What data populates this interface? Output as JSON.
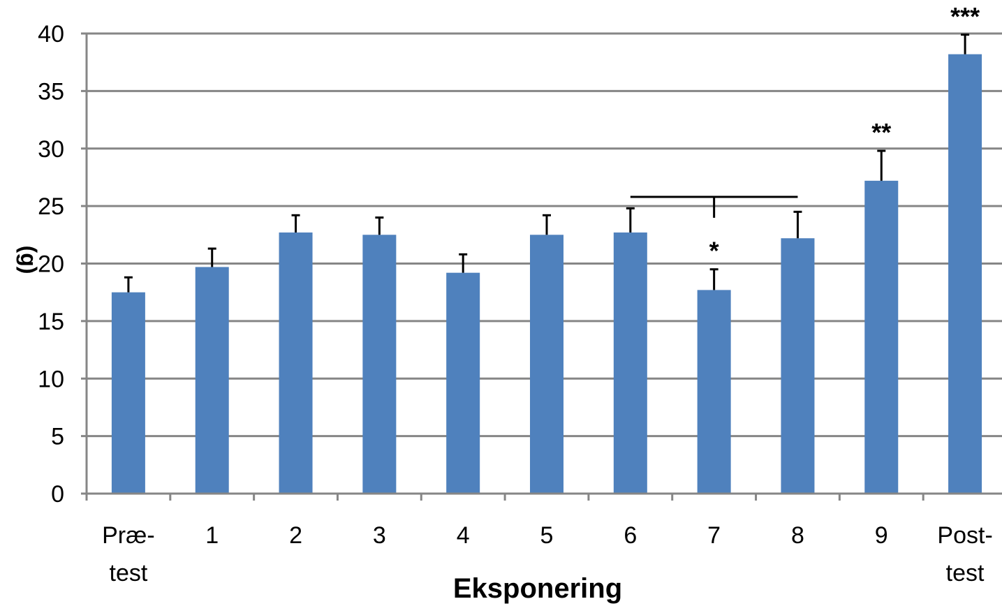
{
  "chart_data": {
    "type": "bar",
    "categories": [
      [
        "Præ-",
        "test"
      ],
      [
        "1"
      ],
      [
        "2"
      ],
      [
        "3"
      ],
      [
        "4"
      ],
      [
        "5"
      ],
      [
        "6"
      ],
      [
        "7"
      ],
      [
        "8"
      ],
      [
        "9"
      ],
      [
        "Post-",
        "test"
      ]
    ],
    "values": [
      17.5,
      19.7,
      22.7,
      22.5,
      19.2,
      22.5,
      22.7,
      17.7,
      22.2,
      27.2,
      38.2
    ],
    "errors": [
      1.3,
      1.6,
      1.5,
      1.5,
      1.6,
      1.7,
      2.1,
      1.8,
      2.3,
      2.6,
      1.7
    ],
    "significance": [
      "",
      "",
      "",
      "",
      "",
      "",
      "",
      "*",
      "",
      "**",
      "***"
    ],
    "bracket": {
      "from": 6,
      "to": 8
    },
    "title": "",
    "xlabel": "Eksponering",
    "ylabel": "(g)",
    "ylim": [
      0,
      40
    ],
    "yticks": [
      0,
      5,
      10,
      15,
      20,
      25,
      30,
      35,
      40
    ],
    "grid": true,
    "legend": "none",
    "colors": {
      "bar": "#4f81bd",
      "grid": "#868686",
      "axis": "#868686",
      "error": "#000000"
    }
  }
}
